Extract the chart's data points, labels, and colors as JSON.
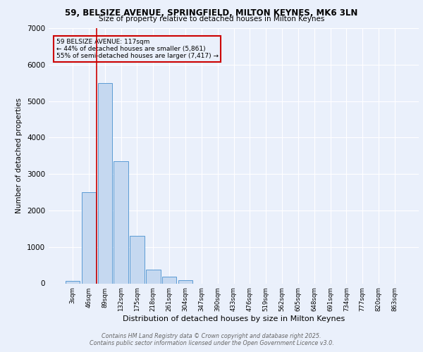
{
  "title_line1": "59, BELSIZE AVENUE, SPRINGFIELD, MILTON KEYNES, MK6 3LN",
  "title_line2": "Size of property relative to detached houses in Milton Keynes",
  "xlabel": "Distribution of detached houses by size in Milton Keynes",
  "ylabel": "Number of detached properties",
  "footer_line1": "Contains HM Land Registry data © Crown copyright and database right 2025.",
  "footer_line2": "Contains public sector information licensed under the Open Government Licence v3.0.",
  "annotation_line1": "59 BELSIZE AVENUE: 117sqm",
  "annotation_line2": "← 44% of detached houses are smaller (5,861)",
  "annotation_line3": "55% of semi-detached houses are larger (7,417) →",
  "bar_labels": [
    "3sqm",
    "46sqm",
    "89sqm",
    "132sqm",
    "175sqm",
    "218sqm",
    "261sqm",
    "304sqm",
    "347sqm",
    "390sqm",
    "433sqm",
    "476sqm",
    "519sqm",
    "562sqm",
    "605sqm",
    "648sqm",
    "691sqm",
    "734sqm",
    "777sqm",
    "820sqm",
    "863sqm"
  ],
  "bar_values": [
    70,
    2500,
    5500,
    3350,
    1300,
    380,
    180,
    80,
    0,
    0,
    0,
    0,
    0,
    0,
    0,
    0,
    0,
    0,
    0,
    0,
    0
  ],
  "bar_color": "#c5d8f0",
  "bar_edge_color": "#5b9bd5",
  "ylim": [
    0,
    7000
  ],
  "yticks": [
    0,
    1000,
    2000,
    3000,
    4000,
    5000,
    6000,
    7000
  ],
  "vline_x": 1.5,
  "vline_color": "#cc0000",
  "bg_color": "#eaf0fb",
  "grid_color": "#ffffff",
  "annotation_box_color": "#cc0000"
}
